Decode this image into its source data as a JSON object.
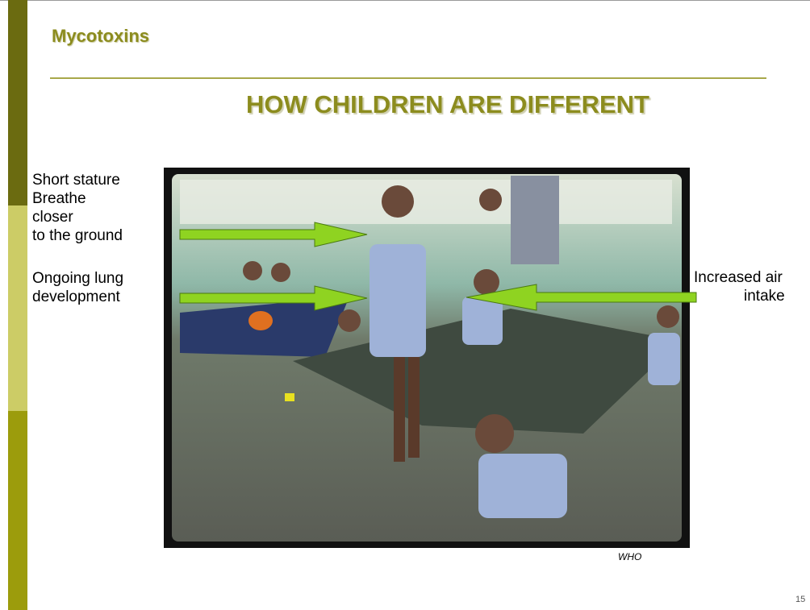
{
  "header": {
    "title": "Mycotoxins"
  },
  "heading": "HOW CHILDREN ARE DIFFERENT",
  "left_notes": [
    {
      "lines": [
        "Short stature",
        "Breathe",
        "closer",
        "to the ground"
      ]
    },
    {
      "lines": [
        "Ongoing lung",
        "development"
      ]
    }
  ],
  "right_note": {
    "lines": [
      "Increased air",
      "intake"
    ]
  },
  "photo_credit": "WHO",
  "page_number": "15"
}
